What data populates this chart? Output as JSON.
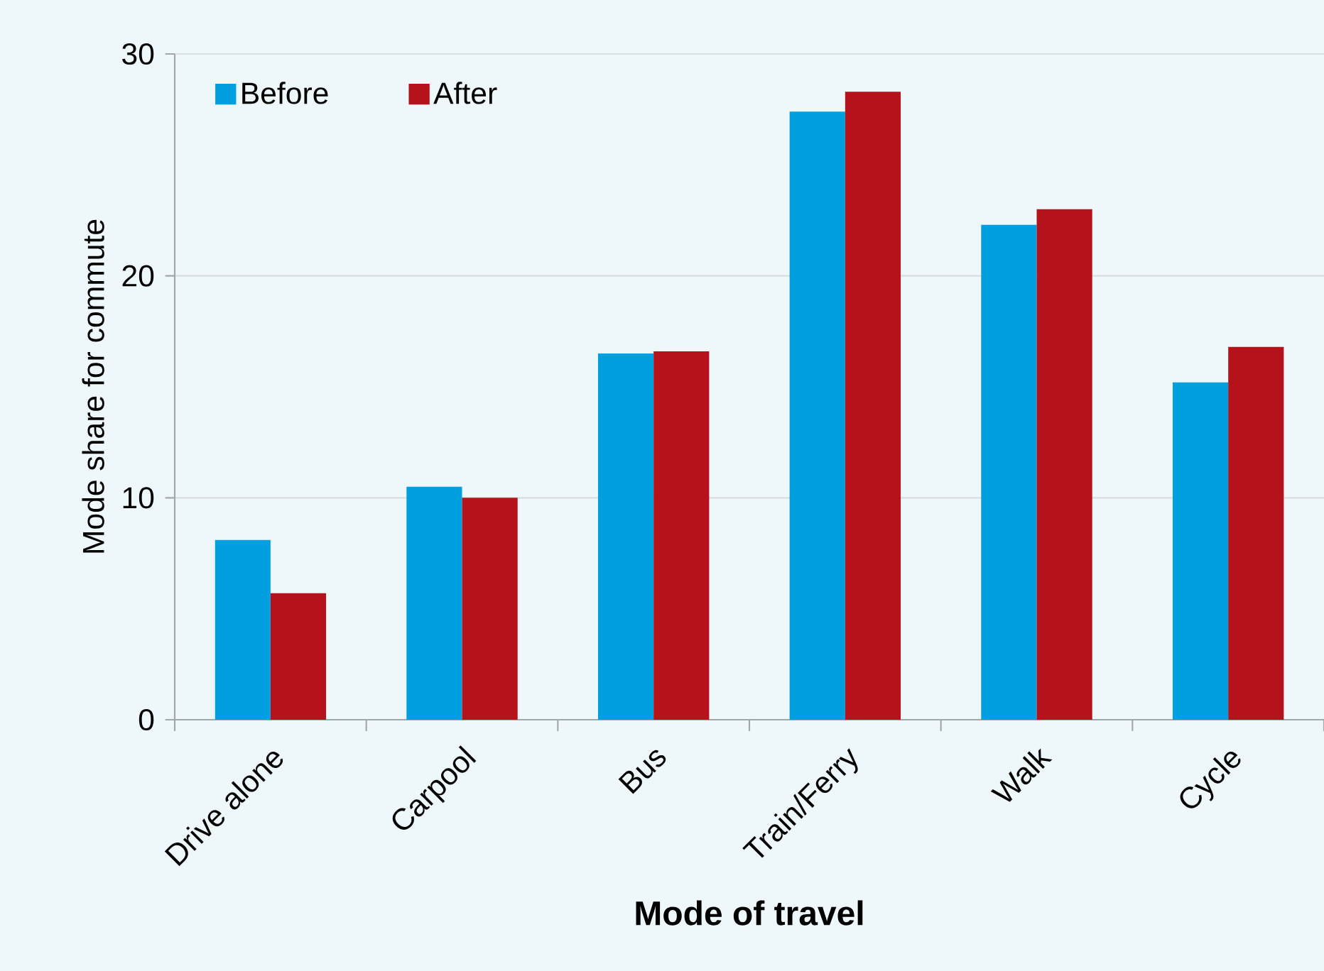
{
  "chart_data": {
    "type": "bar",
    "xlabel": "Mode of travel",
    "ylabel": "Mode share for commute",
    "categories": [
      "Drive alone",
      "Carpool",
      "Bus",
      "Train/Ferry",
      "Walk",
      "Cycle"
    ],
    "series": [
      {
        "name": "Before",
        "color": "#00a0e0",
        "values": [
          8.1,
          10.5,
          16.5,
          27.4,
          22.3,
          15.2
        ]
      },
      {
        "name": "After",
        "color": "#b5121b",
        "values": [
          5.7,
          10.0,
          16.6,
          28.3,
          23.0,
          16.8
        ]
      }
    ],
    "ylim": [
      0,
      30
    ],
    "yticks": [
      0,
      10,
      20,
      30
    ],
    "grid": "y",
    "legend": "top left"
  }
}
